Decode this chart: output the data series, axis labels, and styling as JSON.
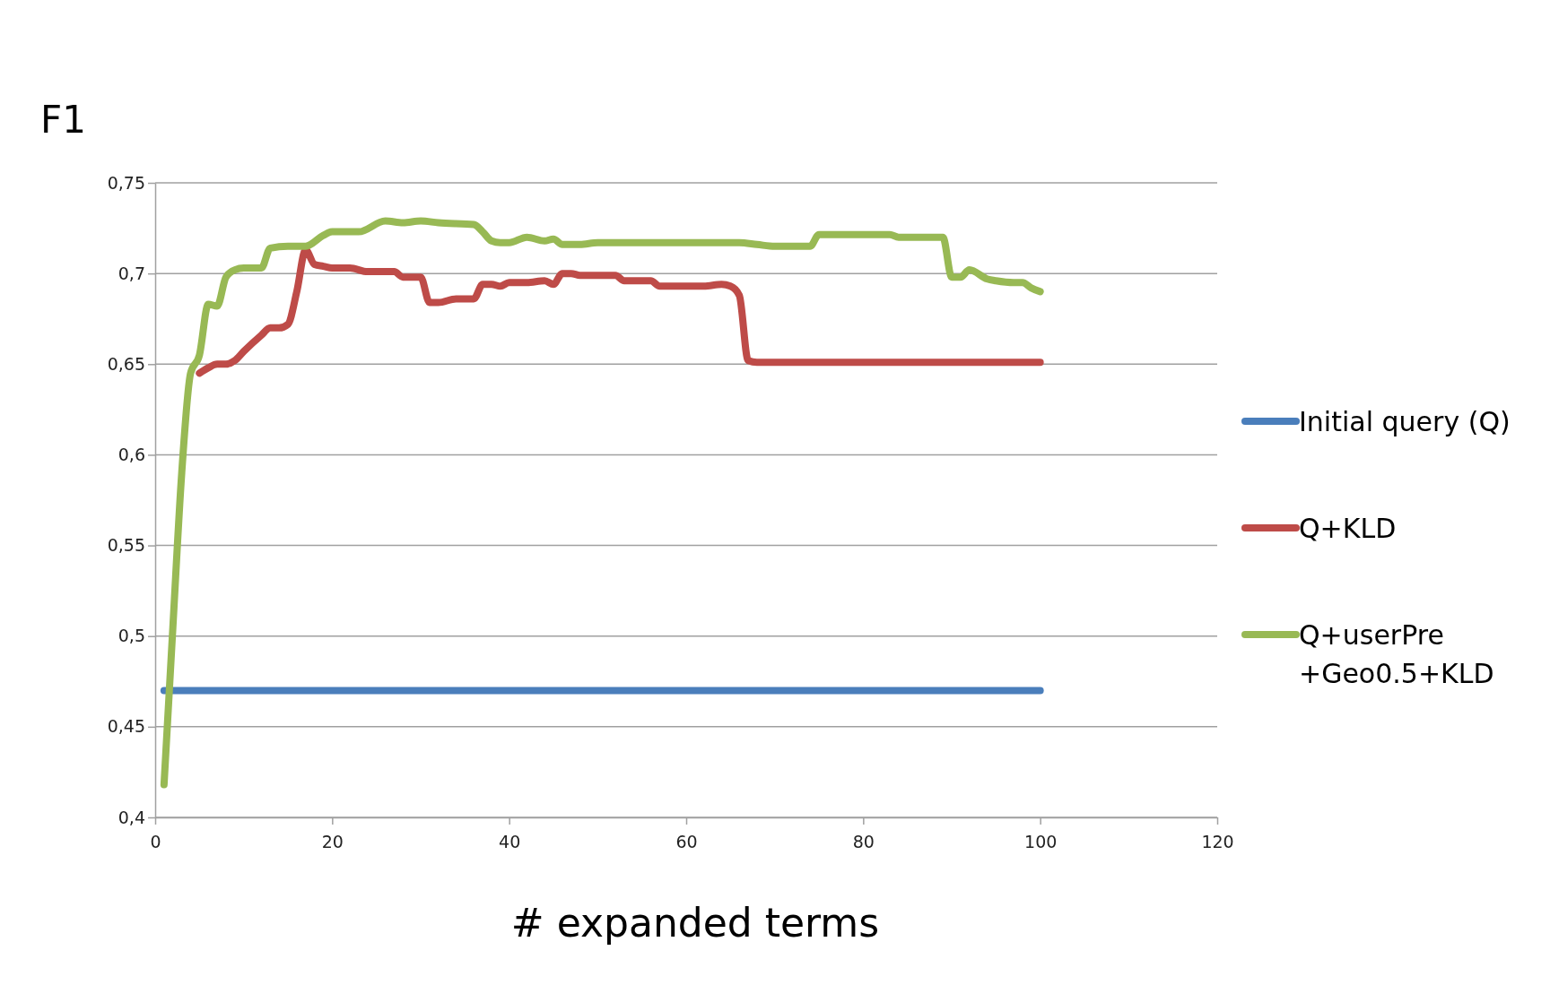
{
  "chart_data": {
    "type": "line",
    "ylabel": "F1",
    "xlabel": "# expanded terms",
    "xlim": [
      0,
      120
    ],
    "xticks": [
      0,
      20,
      40,
      60,
      80,
      100,
      120
    ],
    "ylim": [
      0.4,
      0.75
    ],
    "yticks": [
      {
        "value": 0.4,
        "label": "0,4"
      },
      {
        "value": 0.45,
        "label": "0,45"
      },
      {
        "value": 0.5,
        "label": "0,5"
      },
      {
        "value": 0.55,
        "label": "0,55"
      },
      {
        "value": 0.6,
        "label": "0,6"
      },
      {
        "value": 0.65,
        "label": "0,65"
      },
      {
        "value": 0.7,
        "label": "0,7"
      },
      {
        "value": 0.75,
        "label": "0,75"
      }
    ],
    "grid": "y",
    "legend": "right",
    "marker": "none",
    "line_style": "solid",
    "series": [
      {
        "name": "Initial query (Q)",
        "color": "#4a7ebb",
        "x": [
          1,
          100
        ],
        "values": [
          0.47,
          0.47
        ]
      },
      {
        "name": "Q+KLD",
        "color": "#be4b48",
        "x": [
          5,
          6,
          7,
          8,
          9,
          10,
          12,
          13,
          14,
          15,
          16,
          17,
          18,
          19,
          20,
          22,
          24,
          27,
          28,
          30,
          31,
          32,
          34,
          36,
          37,
          38,
          39,
          40,
          42,
          44,
          45,
          46,
          47,
          48,
          52,
          53,
          56,
          57,
          62,
          64,
          65,
          66,
          67,
          68,
          100
        ],
        "values": [
          0.645,
          0.648,
          0.65,
          0.65,
          0.652,
          0.657,
          0.666,
          0.67,
          0.67,
          0.672,
          0.69,
          0.713,
          0.705,
          0.704,
          0.703,
          0.703,
          0.701,
          0.701,
          0.698,
          0.698,
          0.684,
          0.684,
          0.686,
          0.686,
          0.694,
          0.694,
          0.693,
          0.695,
          0.695,
          0.696,
          0.694,
          0.7,
          0.7,
          0.699,
          0.699,
          0.696,
          0.696,
          0.693,
          0.693,
          0.694,
          0.693,
          0.688,
          0.652,
          0.651,
          0.651
        ]
      },
      {
        "name": "Q+userPre +Geo0.5+KLD",
        "color": "#98b954",
        "x": [
          1,
          2,
          3,
          4,
          5,
          6,
          7,
          8,
          9,
          10,
          12,
          13,
          15,
          17,
          19,
          20,
          23,
          26,
          28,
          30,
          32,
          36,
          37,
          38,
          39,
          40,
          42,
          44,
          45,
          46,
          48,
          50,
          60,
          66,
          68,
          70,
          74,
          75,
          83,
          84,
          88,
          89,
          90,
          91,
          92,
          94,
          95,
          97,
          98,
          99,
          100
        ],
        "values": [
          0.418,
          0.505,
          0.59,
          0.645,
          0.655,
          0.683,
          0.682,
          0.698,
          0.702,
          0.703,
          0.703,
          0.714,
          0.715,
          0.715,
          0.721,
          0.723,
          0.723,
          0.729,
          0.728,
          0.729,
          0.728,
          0.727,
          0.723,
          0.718,
          0.717,
          0.717,
          0.72,
          0.718,
          0.719,
          0.716,
          0.716,
          0.717,
          0.717,
          0.717,
          0.716,
          0.715,
          0.715,
          0.7215,
          0.7215,
          0.72,
          0.72,
          0.72,
          0.698,
          0.698,
          0.702,
          0.697,
          0.696,
          0.695,
          0.695,
          0.692,
          0.69
        ]
      }
    ]
  }
}
